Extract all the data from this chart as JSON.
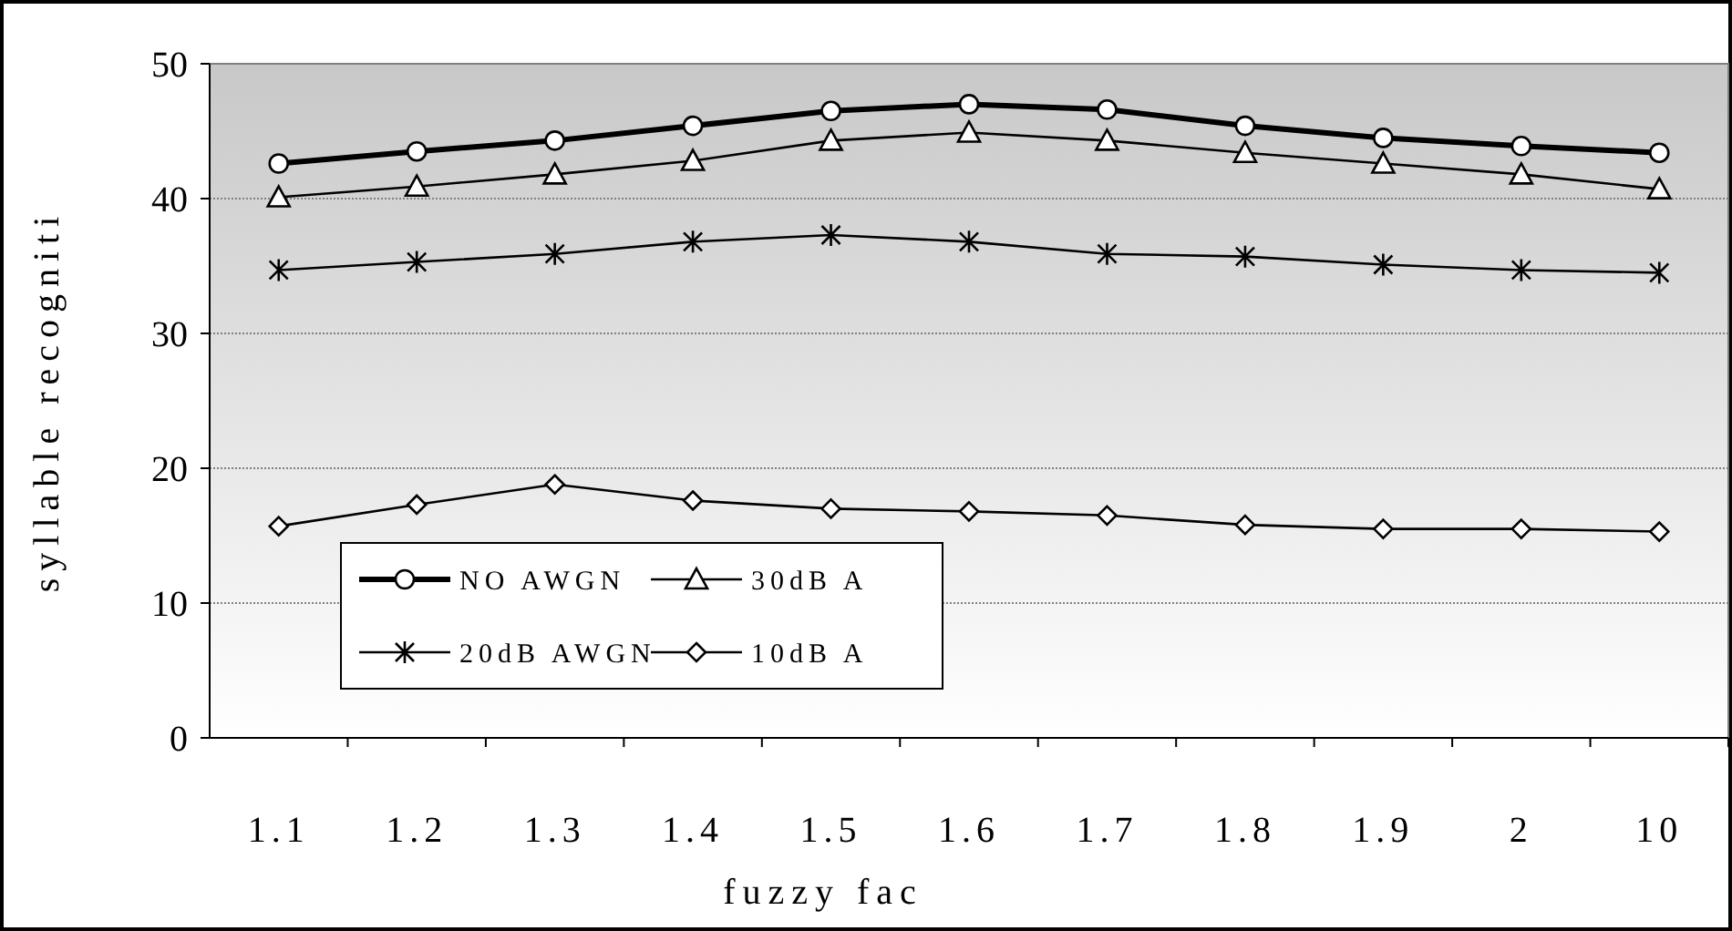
{
  "chart_data": {
    "type": "line",
    "xlabel": "fuzzy fac",
    "ylabel": "syllable recogniti",
    "categories": [
      "1.1",
      "1.2",
      "1.3",
      "1.4",
      "1.5",
      "1.6",
      "1.7",
      "1.8",
      "1.9",
      "2",
      "10"
    ],
    "ylim": [
      0,
      50
    ],
    "yticks": [
      0,
      10,
      20,
      30,
      40,
      50
    ],
    "grid": "y",
    "legend": "bottom left",
    "series": [
      {
        "name": "NO AWGN",
        "color": "#000000",
        "marker": "circle",
        "values": [
          42.6,
          43.5,
          44.3,
          45.4,
          46.5,
          47.0,
          46.6,
          45.4,
          44.5,
          43.9,
          43.4
        ]
      },
      {
        "name": "30dB A",
        "color": "#000000",
        "marker": "triangle",
        "values": [
          40.1,
          40.9,
          41.8,
          42.8,
          44.3,
          44.9,
          44.3,
          43.4,
          42.6,
          41.8,
          40.7
        ]
      },
      {
        "name": "20dB AWGN",
        "color": "#000000",
        "marker": "cross",
        "values": [
          34.7,
          35.3,
          35.9,
          36.8,
          37.3,
          36.8,
          35.9,
          35.7,
          35.1,
          34.7,
          34.5
        ]
      },
      {
        "name": "10dB A",
        "color": "#000000",
        "marker": "diamond",
        "values": [
          15.7,
          17.3,
          18.8,
          17.6,
          17.0,
          16.8,
          16.5,
          15.8,
          15.5,
          15.5,
          15.3
        ]
      }
    ]
  }
}
